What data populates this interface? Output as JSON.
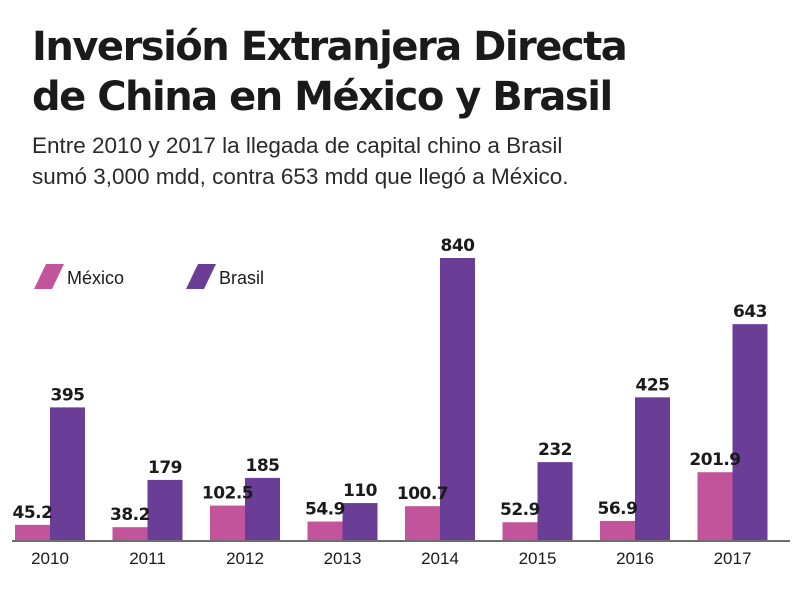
{
  "header": {
    "title_line1": "Inversión Extranjera Directa",
    "title_line2": "de China en México y Brasil",
    "subtitle_line1": "Entre 2010 y 2017 la llegada de capital chino a Brasil",
    "subtitle_line2": "sumó 3,000 mdd, contra 653 mdd que llegó a México."
  },
  "chart_data": {
    "type": "bar",
    "categories": [
      "2010",
      "2011",
      "2012",
      "2013",
      "2014",
      "2015",
      "2016",
      "2017"
    ],
    "series": [
      {
        "name": "México",
        "color": "#c2549c",
        "values": [
          45.2,
          38.2,
          102.5,
          54.9,
          100.7,
          52.9,
          56.9,
          201.9
        ],
        "labels": [
          "45.2",
          "38.2",
          "102.5",
          "54.9",
          "100.7",
          "52.9",
          "56.9",
          "201.9"
        ]
      },
      {
        "name": "Brasil",
        "color": "#6a3d97",
        "values": [
          395,
          179,
          185,
          110,
          840,
          232,
          425,
          643
        ],
        "labels": [
          "395",
          "179",
          "185",
          "110",
          "840",
          "232",
          "425",
          "643"
        ]
      }
    ],
    "ylim": [
      0,
      840
    ],
    "grid": false,
    "legend_position": "top-left",
    "axis_color": "#6d6d6d"
  }
}
